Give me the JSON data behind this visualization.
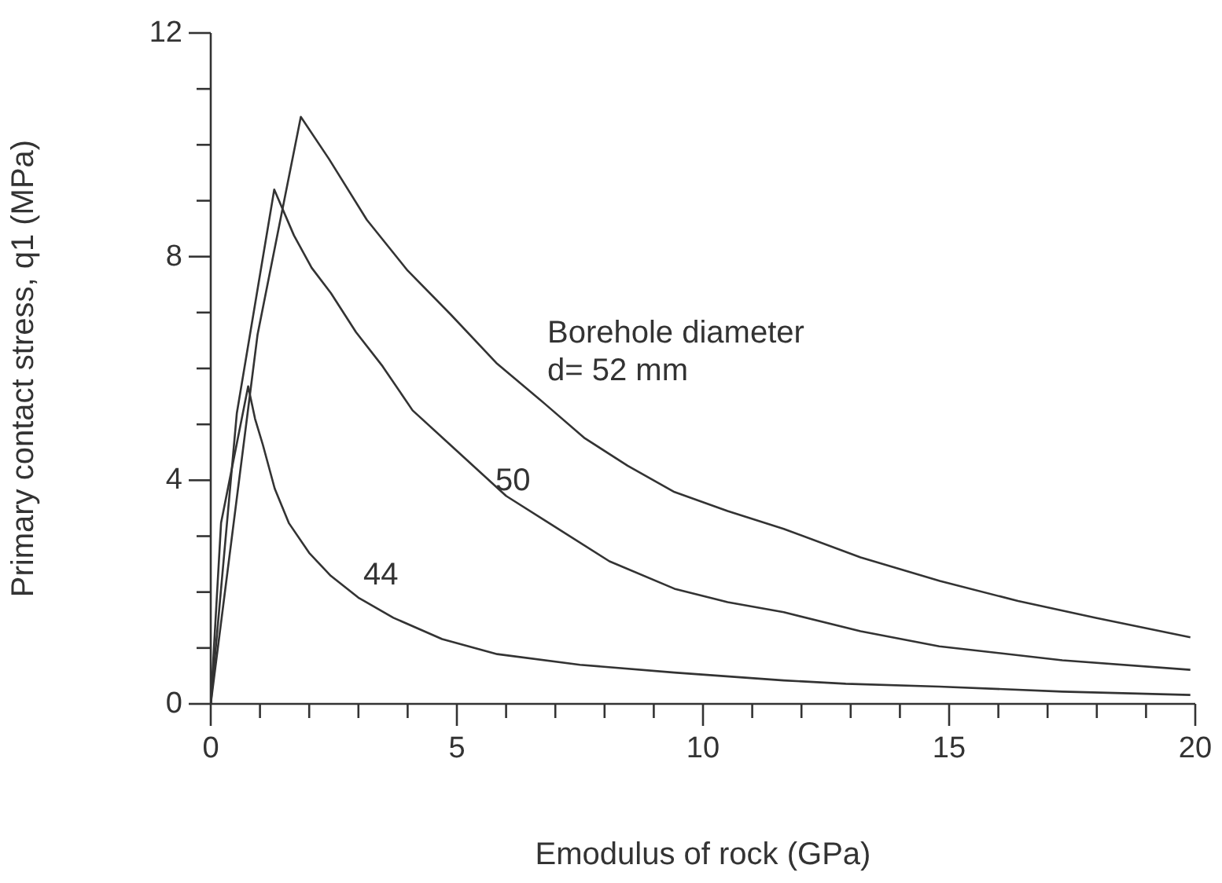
{
  "chart_data": {
    "type": "line",
    "xlabel": "Emodulus of rock (GPa)",
    "ylabel": "Primary contact stress, q1 (MPa)",
    "xlim": [
      0,
      20
    ],
    "ylim": [
      0,
      12
    ],
    "xticks": [
      0,
      {
        "value": 1,
        "label": null
      },
      {
        "value": 2,
        "label": null
      },
      {
        "value": 3,
        "label": null
      },
      {
        "value": 4,
        "label": null
      },
      5,
      {
        "value": 6,
        "label": null
      },
      {
        "value": 7,
        "label": null
      },
      {
        "value": 8,
        "label": null
      },
      {
        "value": 9,
        "label": null
      },
      10,
      {
        "value": 11,
        "label": null
      },
      {
        "value": 12,
        "label": null
      },
      {
        "value": 13,
        "label": null
      },
      {
        "value": 14,
        "label": null
      },
      15,
      {
        "value": 16,
        "label": null
      },
      {
        "value": 17,
        "label": null
      },
      {
        "value": 18,
        "label": null
      },
      {
        "value": 19,
        "label": null
      },
      20
    ],
    "yticks": [
      0,
      {
        "value": 1,
        "label": null
      },
      {
        "value": 2,
        "label": null
      },
      {
        "value": 3,
        "label": null
      },
      4,
      {
        "value": 5,
        "label": null
      },
      {
        "value": 6,
        "label": null
      },
      {
        "value": 7,
        "label": null
      },
      8,
      {
        "value": 9,
        "label": null
      },
      {
        "value": 10,
        "label": null
      },
      {
        "value": 11,
        "label": null
      },
      12
    ],
    "grid": false,
    "marker": "none",
    "line_style": "solid",
    "series": [
      {
        "color": "#333333",
        "x": [
          0,
          0.95,
          1.83,
          2.4,
          3.17,
          4.0,
          4.87,
          5.8,
          6.77,
          7.6,
          8.47,
          9.42,
          10.5,
          11.64,
          13.2,
          14.81,
          16.4,
          17.98,
          19.9
        ],
        "values": [
          0,
          6.6,
          10.5,
          9.75,
          8.66,
          7.75,
          6.97,
          6.1,
          5.38,
          4.75,
          4.26,
          3.79,
          3.45,
          3.13,
          2.62,
          2.2,
          1.84,
          1.54,
          1.19
        ]
      },
      {
        "color": "#333333",
        "x": [
          0,
          0.53,
          1.29,
          1.69,
          2.05,
          2.44,
          2.95,
          3.49,
          4.1,
          4.87,
          6.0,
          6.88,
          8.1,
          9.42,
          10.5,
          11.64,
          13.2,
          14.8,
          17.3,
          19.9
        ],
        "values": [
          0,
          5.2,
          9.2,
          8.38,
          7.8,
          7.35,
          6.65,
          6.04,
          5.25,
          4.63,
          3.72,
          3.23,
          2.55,
          2.06,
          1.82,
          1.64,
          1.3,
          1.03,
          0.78,
          0.61
        ]
      },
      {
        "color": "#333333",
        "x": [
          0,
          0.21,
          0.76,
          0.9,
          1.06,
          1.3,
          1.59,
          2.0,
          2.44,
          3.0,
          3.71,
          4.7,
          5.82,
          7.5,
          9.42,
          11.64,
          12.9,
          14.8,
          17.3,
          19.9
        ],
        "values": [
          0,
          3.24,
          5.68,
          5.1,
          4.63,
          3.85,
          3.23,
          2.7,
          2.29,
          1.9,
          1.54,
          1.16,
          0.89,
          0.7,
          0.56,
          0.42,
          0.36,
          0.31,
          0.22,
          0.16
        ]
      }
    ],
    "annotations": [
      "Borehole diameter\nd= 52 mm",
      "50",
      "44"
    ]
  }
}
